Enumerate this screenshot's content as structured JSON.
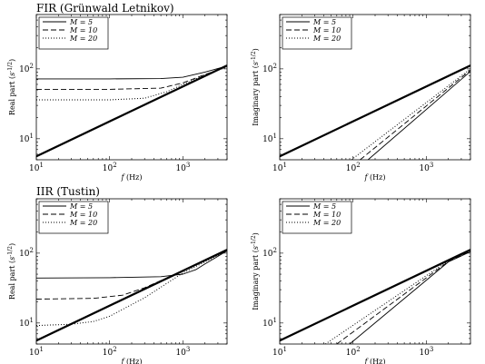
{
  "figure": {
    "titles": [
      "FIR (Grünwald Letnikov)",
      "IIR (Tustin)"
    ]
  },
  "chart_data": [
    {
      "type": "line",
      "title": "FIR (Grünwald Letnikov)",
      "xlabel": "f (Hz)",
      "ylabel": "Real part (s^-1/2)",
      "xscale": "log",
      "yscale": "log",
      "xlim": [
        10,
        4000
      ],
      "ylim": [
        5,
        600
      ],
      "xticks": [
        10,
        100,
        1000
      ],
      "xtick_labels": [
        "10^1",
        "10^2",
        "10^3"
      ],
      "yticks": [
        10,
        100
      ],
      "ytick_labels": [
        "10^1",
        "10^2"
      ],
      "grid": false,
      "legend": "top-left",
      "series": [
        {
          "name": "M = 5",
          "style": "solid",
          "x": [
            10,
            100,
            500,
            1000,
            2000,
            4000
          ],
          "y": [
            72,
            72,
            72.5,
            76,
            90,
            110
          ]
        },
        {
          "name": "M = 10",
          "style": "dashed",
          "x": [
            10,
            100,
            500,
            1000,
            2000,
            4000
          ],
          "y": [
            51,
            51,
            53,
            63,
            83,
            108
          ]
        },
        {
          "name": "M = 20",
          "style": "dotted",
          "x": [
            10,
            100,
            300,
            600,
            1000,
            2000,
            4000
          ],
          "y": [
            36,
            36,
            38,
            47,
            60,
            82,
            106
          ]
        },
        {
          "name": "",
          "style": "bold",
          "x": [
            10,
            4000
          ],
          "y": [
            5.6,
            112
          ]
        }
      ]
    },
    {
      "type": "line",
      "title": "",
      "xlabel": "f (Hz)",
      "ylabel": "Imaginary part (s^-1/2)",
      "xscale": "log",
      "yscale": "log",
      "xlim": [
        10,
        4000
      ],
      "ylim": [
        5,
        600
      ],
      "xticks": [
        10,
        100,
        1000
      ],
      "xtick_labels": [
        "10^1",
        "10^2",
        "10^3"
      ],
      "yticks": [
        10,
        100
      ],
      "ytick_labels": [
        "10^1",
        "10^2"
      ],
      "grid": false,
      "legend": "top-left",
      "series": [
        {
          "name": "M = 5",
          "style": "solid",
          "x": [
            160,
            4000
          ],
          "y": [
            5,
            92
          ]
        },
        {
          "name": "M = 10",
          "style": "dashed",
          "x": [
            125,
            4000
          ],
          "y": [
            5,
            96
          ]
        },
        {
          "name": "M = 20",
          "style": "dotted",
          "x": [
            95,
            4000
          ],
          "y": [
            5,
            100
          ]
        },
        {
          "name": "",
          "style": "bold",
          "x": [
            10,
            4000
          ],
          "y": [
            5.6,
            112
          ]
        }
      ]
    },
    {
      "type": "line",
      "title": "IIR (Tustin)",
      "xlabel": "f (Hz)",
      "ylabel": "Real part (s^-1/2)",
      "xscale": "log",
      "yscale": "log",
      "xlim": [
        10,
        4000
      ],
      "ylim": [
        5,
        600
      ],
      "xticks": [
        10,
        100,
        1000
      ],
      "xtick_labels": [
        "10^1",
        "10^2",
        "10^3"
      ],
      "yticks": [
        10,
        100
      ],
      "ytick_labels": [
        "10^1",
        "10^2"
      ],
      "grid": false,
      "legend": "top-left",
      "series": [
        {
          "name": "M = 5",
          "style": "solid",
          "x": [
            10,
            100,
            500,
            1000,
            1500,
            2000,
            3000,
            4000
          ],
          "y": [
            44,
            44.5,
            46,
            50,
            58,
            70,
            90,
            108
          ]
        },
        {
          "name": "M = 10",
          "style": "dashed",
          "x": [
            10,
            60,
            150,
            300,
            600,
            1000,
            2000,
            4000
          ],
          "y": [
            22,
            22.5,
            25,
            32,
            44,
            56,
            78,
            108
          ]
        },
        {
          "name": "M = 20",
          "style": "dotted",
          "x": [
            10,
            30,
            60,
            100,
            300,
            1000,
            4000
          ],
          "y": [
            9.2,
            9.6,
            10.5,
            12.5,
            23,
            52,
            108
          ]
        },
        {
          "name": "",
          "style": "bold",
          "x": [
            10,
            4000
          ],
          "y": [
            5.6,
            112
          ]
        }
      ]
    },
    {
      "type": "line",
      "title": "",
      "xlabel": "f (Hz)",
      "ylabel": "Imaginary part (s^-1/2)",
      "xscale": "log",
      "yscale": "log",
      "xlim": [
        10,
        4000
      ],
      "ylim": [
        5,
        600
      ],
      "xticks": [
        10,
        100,
        1000
      ],
      "xtick_labels": [
        "10^1",
        "10^2",
        "10^3"
      ],
      "yticks": [
        10,
        100
      ],
      "ytick_labels": [
        "10^1",
        "10^2"
      ],
      "grid": false,
      "legend": "top-left",
      "series": [
        {
          "name": "M = 5",
          "style": "solid",
          "x": [
            90,
            2000,
            4000
          ],
          "y": [
            5,
            75,
            105
          ]
        },
        {
          "name": "M = 10",
          "style": "dashed",
          "x": [
            60,
            2000,
            4000
          ],
          "y": [
            5,
            76,
            106
          ]
        },
        {
          "name": "M = 20",
          "style": "dotted",
          "x": [
            42,
            2000,
            4000
          ],
          "y": [
            5,
            78,
            108
          ]
        },
        {
          "name": "",
          "style": "bold",
          "x": [
            10,
            4000
          ],
          "y": [
            5.6,
            112
          ]
        }
      ]
    }
  ]
}
